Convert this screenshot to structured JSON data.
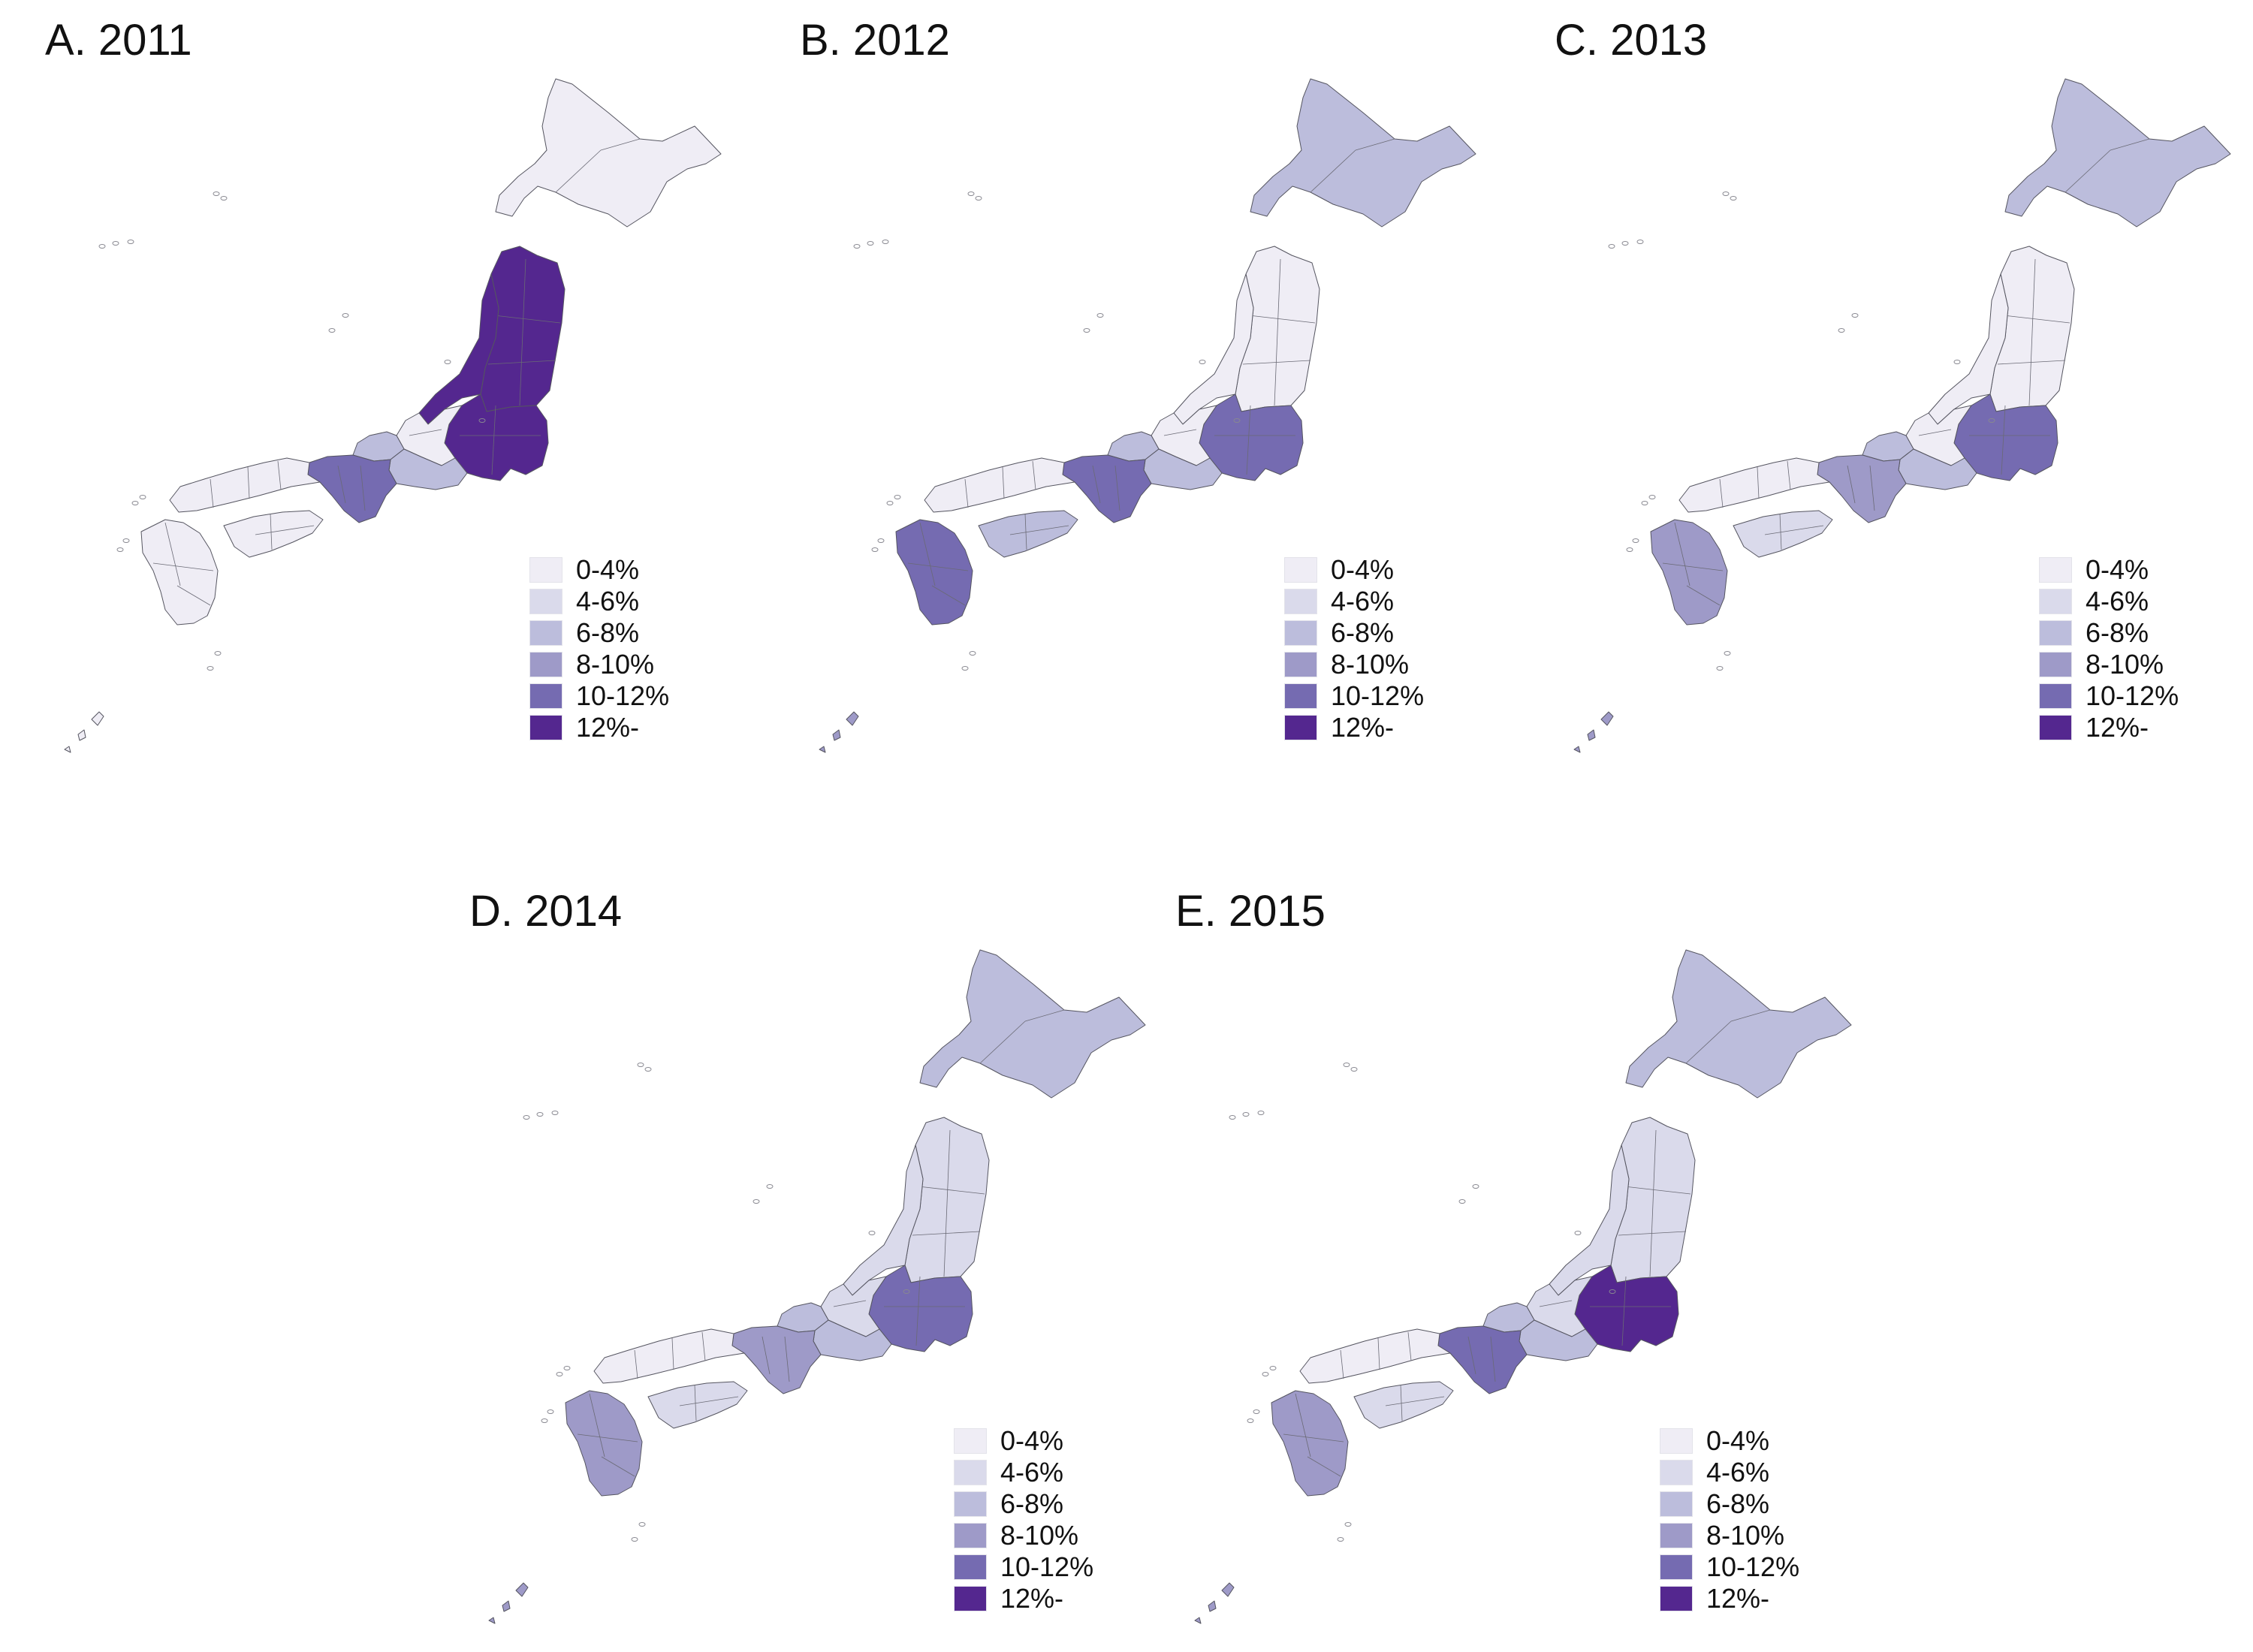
{
  "legend": {
    "labels": [
      "0-4%",
      "4-6%",
      "6-8%",
      "8-10%",
      "10-12%",
      "12%-"
    ],
    "colors": [
      "#efedf5",
      "#dadaeb",
      "#bcbddc",
      "#9e9ac8",
      "#756bb1",
      "#54278f"
    ]
  },
  "panels": [
    {
      "title": "A. 2011",
      "region_bins": {
        "hokkaido": 0,
        "tohoku": 5,
        "kanto": 5,
        "niigata": 5,
        "chubu": 0,
        "tokai": 2,
        "hokuriku": 2,
        "kinki": 4,
        "chugoku": 0,
        "shikoku": 0,
        "kyushu": 0,
        "okinawa": 0
      }
    },
    {
      "title": "B. 2012",
      "region_bins": {
        "hokkaido": 2,
        "tohoku": 0,
        "kanto": 4,
        "niigata": 0,
        "chubu": 0,
        "tokai": 2,
        "hokuriku": 2,
        "kinki": 4,
        "chugoku": 0,
        "shikoku": 2,
        "kyushu": 4,
        "okinawa": 3
      }
    },
    {
      "title": "C. 2013",
      "region_bins": {
        "hokkaido": 2,
        "tohoku": 0,
        "kanto": 4,
        "niigata": 0,
        "chubu": 0,
        "tokai": 2,
        "hokuriku": 2,
        "kinki": 3,
        "chugoku": 0,
        "shikoku": 1,
        "kyushu": 3,
        "okinawa": 3
      }
    },
    {
      "title": "D. 2014",
      "region_bins": {
        "hokkaido": 2,
        "tohoku": 1,
        "kanto": 4,
        "niigata": 1,
        "chubu": 1,
        "tokai": 2,
        "hokuriku": 2,
        "kinki": 3,
        "chugoku": 0,
        "shikoku": 1,
        "kyushu": 3,
        "okinawa": 3
      }
    },
    {
      "title": "E. 2015",
      "region_bins": {
        "hokkaido": 2,
        "tohoku": 1,
        "kanto": 5,
        "niigata": 1,
        "chubu": 1,
        "tokai": 2,
        "hokuriku": 2,
        "kinki": 4,
        "chugoku": 0,
        "shikoku": 1,
        "kyushu": 3,
        "okinawa": 3
      }
    }
  ]
}
